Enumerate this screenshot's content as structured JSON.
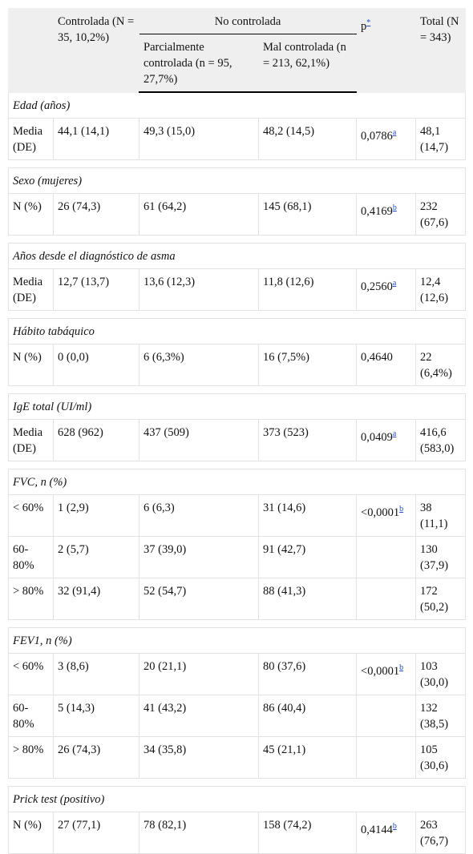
{
  "header": {
    "controlled": "Controlada (N = 35, 10,2%)",
    "group": "No controlada",
    "partial": "Parcialmente controlada (n = 95, 27,7%)",
    "poor": "Mal controlada (n = 213, 62,1%)",
    "p": "p",
    "p_ref": "*",
    "total": "Total (N = 343)"
  },
  "sections": [
    {
      "title": "Edad (años)",
      "rows": [
        {
          "label": "Media (DE)",
          "cells": [
            "44,1 (14,1)",
            "49,3 (15,0)",
            "48,2 (14,5)"
          ],
          "p": "0,0786",
          "p_ref": "a",
          "total": "48,1 (14,7)"
        }
      ]
    },
    {
      "title": "Sexo (mujeres)",
      "rows": [
        {
          "label": "N (%)",
          "cells": [
            "26 (74,3)",
            "61 (64,2)",
            "145 (68,1)"
          ],
          "p": "0,4169",
          "p_ref": "b",
          "total": "232 (67,6)"
        }
      ]
    },
    {
      "title": "Años desde el diagnóstico de asma",
      "rows": [
        {
          "label": "Media (DE)",
          "cells": [
            "12,7 (13,7)",
            "13,6 (12,3)",
            "11,8 (12,6)"
          ],
          "p": "0,2560",
          "p_ref": "a",
          "total": "12,4 (12,6)"
        }
      ]
    },
    {
      "title": "Hábito tabáquico",
      "rows": [
        {
          "label": "N (%)",
          "cells": [
            "0 (0,0)",
            "6 (6,3%)",
            "16 (7,5%)"
          ],
          "p": "0,4640",
          "total": "22 (6,4%)"
        }
      ]
    },
    {
      "title": "IgE total (UI/ml)",
      "rows": [
        {
          "label": "Media (DE)",
          "cells": [
            "628 (962)",
            "437 (509)",
            "373 (523)"
          ],
          "p": "0,0409",
          "p_ref": "a",
          "total": "416,6 (583,0)"
        }
      ]
    },
    {
      "title": "FVC, n (%)",
      "rows": [
        {
          "label": "< 60%",
          "cells": [
            "1 (2,9)",
            "6 (6,3)",
            "31 (14,6)"
          ],
          "p": "<0,0001",
          "p_ref": "b",
          "total": "38 (11,1)"
        },
        {
          "label": "60-80%",
          "cells": [
            "2 (5,7)",
            "37 (39,0)",
            "91 (42,7)"
          ],
          "total": "130 (37,9)"
        },
        {
          "label": "> 80%",
          "cells": [
            "32 (91,4)",
            "52 (54,7)",
            "88 (41,3)"
          ],
          "total": "172 (50,2)"
        }
      ]
    },
    {
      "title": "FEV1, n (%)",
      "rows": [
        {
          "label": "< 60%",
          "cells": [
            "3 (8,6)",
            "20 (21,1)",
            "80 (37,6)"
          ],
          "p": "<0,0001",
          "p_ref": "b",
          "total": "103 (30,0)"
        },
        {
          "label": "60-80%",
          "cells": [
            "5 (14,3)",
            "41 (43,2)",
            "86 (40,4)"
          ],
          "total": "132 (38,5)"
        },
        {
          "label": "> 80%",
          "cells": [
            "26 (74,3)",
            "34 (35,8)",
            "45 (21,1)"
          ],
          "total": "105 (30,6)"
        }
      ]
    },
    {
      "title": "Prick test (positivo)",
      "rows": [
        {
          "label": "N (%)",
          "cells": [
            "27 (77,1)",
            "78 (82,1)",
            "158 (74,2)"
          ],
          "p": "0,4144",
          "p_ref": "b",
          "total": "263 (76,7)"
        }
      ]
    }
  ]
}
